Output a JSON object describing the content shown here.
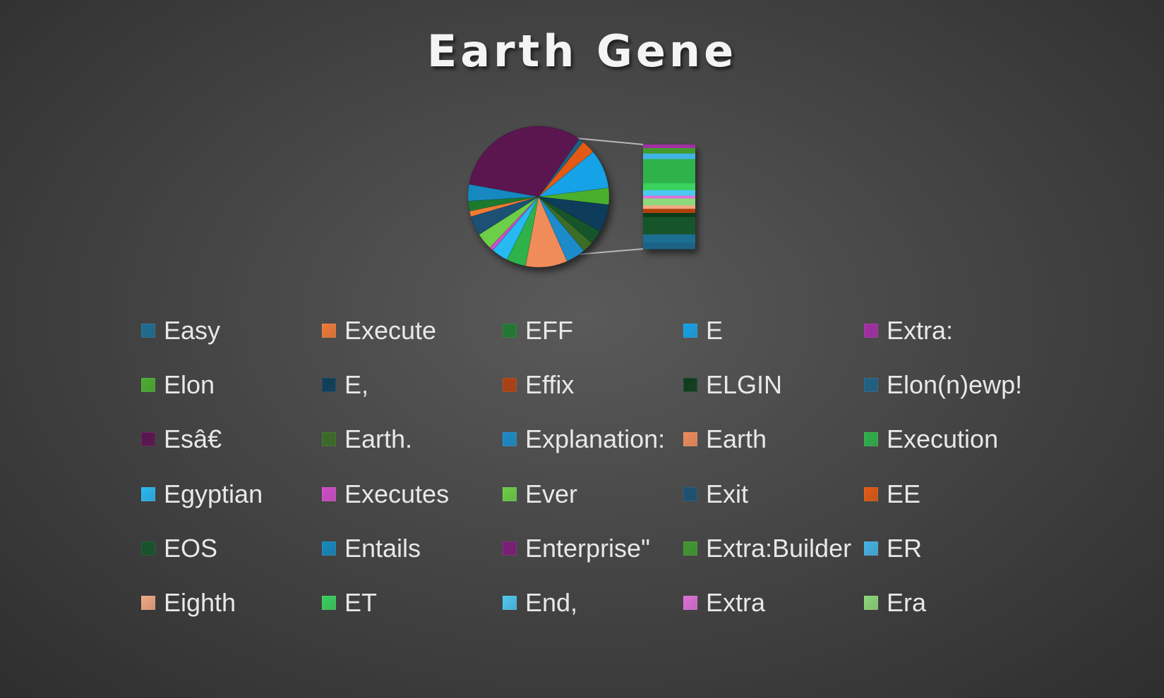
{
  "chart_data": {
    "type": "pie",
    "subtype": "bar-of-pie",
    "title": "Earth Gene",
    "legend_position": "bottom",
    "series": [
      {
        "slices": [
          {
            "label": "Easy",
            "value": 1.2,
            "color": "#1c6e93"
          },
          {
            "label": "Execute",
            "value": 1.0,
            "color": "#f07a36"
          },
          {
            "label": "EFF",
            "value": 1.8,
            "color": "#1d7a2e"
          },
          {
            "label": "E",
            "value": 7.0,
            "color": "#12a2e6"
          },
          {
            "label": "Extra:",
            "value": 0.5,
            "color": "#a42da6"
          },
          {
            "label": "Elon",
            "value": 3.0,
            "color": "#4caf2f"
          },
          {
            "label": "E,",
            "value": 5.0,
            "color": "#0b3d5a"
          },
          {
            "label": "Effix",
            "value": 0.6,
            "color": "#b0400f"
          },
          {
            "label": "ELGIN",
            "value": 0.6,
            "color": "#0b3b1a"
          },
          {
            "label": "Elon(n)ewp!",
            "value": 0.9,
            "color": "#1d6286"
          },
          {
            "label": "Esâ€",
            "value": 25.0,
            "color": "#5b1350"
          },
          {
            "label": "Earth.",
            "value": 2.0,
            "color": "#3a6d25"
          },
          {
            "label": "Explanation:",
            "value": 3.5,
            "color": "#1a8bc9"
          },
          {
            "label": "Earth",
            "value": 7.5,
            "color": "#f08c5a"
          },
          {
            "label": "Execution",
            "value": 3.5,
            "color": "#2eb24a"
          },
          {
            "label": "Egyptian",
            "value": 3.0,
            "color": "#28b9f2"
          },
          {
            "label": "Executes",
            "value": 0.7,
            "color": "#d34dcb"
          },
          {
            "label": "Ever",
            "value": 3.0,
            "color": "#6ccf46"
          },
          {
            "label": "Exit",
            "value": 3.5,
            "color": "#1a5174"
          },
          {
            "label": "EE",
            "value": 2.5,
            "color": "#e25a12"
          },
          {
            "label": "EOS",
            "value": 2.5,
            "color": "#13542a"
          },
          {
            "label": "Entails",
            "value": 3.0,
            "color": "#1589c0"
          },
          {
            "label": "Enterprise\"",
            "value": 0.9,
            "color": "#7d1c78"
          },
          {
            "label": "Extra:Builder",
            "value": 0.8,
            "color": "#3f9a2e"
          },
          {
            "label": "ER",
            "value": 0.8,
            "color": "#43b3e6"
          },
          {
            "label": "Eighth",
            "value": 0.5,
            "color": "#f3a883"
          },
          {
            "label": "ET",
            "value": 1.0,
            "color": "#38d25c"
          },
          {
            "label": "End,",
            "value": 0.8,
            "color": "#4cc8f0"
          },
          {
            "label": "Extra",
            "value": 0.4,
            "color": "#e070d8"
          },
          {
            "label": "Era",
            "value": 1.0,
            "color": "#8ed97a"
          }
        ]
      }
    ],
    "pie_order": [
      "Elon(n)ewp!",
      "EE",
      "E",
      "Elon",
      "E,",
      "EOS",
      "Earth.",
      "Explanation:",
      "Earth",
      "Execution",
      "Egyptian",
      "Executes",
      "Ever",
      "Exit",
      "Execute",
      "EFF",
      "Entails",
      "Esâ€"
    ],
    "bar_order": [
      "Extra:",
      "Extra:Builder",
      "ER",
      "Execution",
      "ET",
      "End,",
      "Extra",
      "Era",
      "Eighth",
      "Effix",
      "ELGIN",
      "EOS",
      "Easy",
      "Elon(n)ewp!"
    ]
  }
}
